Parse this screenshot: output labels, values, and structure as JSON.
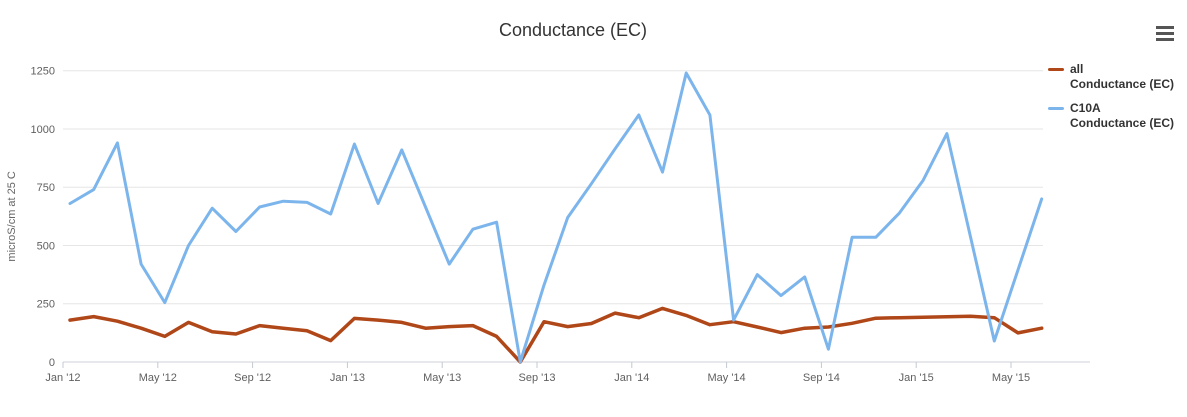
{
  "title": {
    "text": "Conductance (EC)"
  },
  "menu": {
    "icon": "hamburger-context-menu"
  },
  "legend": {
    "position": "right",
    "items": [
      {
        "title": "all",
        "subtitle": "Conductance (EC)"
      },
      {
        "title": "C10A",
        "subtitle": "Conductance (EC)"
      }
    ]
  },
  "chart_data": {
    "type": "line",
    "title": "Conductance (EC)",
    "xlabel": "",
    "ylabel": "microS/cm at 25 C",
    "ylim": [
      0,
      1250
    ],
    "yticks": [
      0,
      250,
      500,
      750,
      1000,
      1250
    ],
    "grid": true,
    "legend_position": "right",
    "categories": [
      "Jan '12",
      "Feb '12",
      "Mar '12",
      "Apr '12",
      "May '12",
      "Jun '12",
      "Jul '12",
      "Aug '12",
      "Sep '12",
      "Oct '12",
      "Nov '12",
      "Dec '12",
      "Jan '13",
      "Feb '13",
      "Mar '13",
      "Apr '13",
      "May '13",
      "Jun '13",
      "Jul '13",
      "Aug '13",
      "Sep '13",
      "Oct '13",
      "Nov '13",
      "Dec '13",
      "Jan '14",
      "Feb '14",
      "Mar '14",
      "Apr '14",
      "May '14",
      "Jun '14",
      "Jul '14",
      "Aug '14",
      "Sep '14",
      "Oct '14",
      "Nov '14",
      "Dec '14",
      "Jan '15",
      "Feb '15",
      "Mar '15",
      "Apr '15",
      "May '15",
      "Jun '15"
    ],
    "xtick_indices": [
      0,
      4,
      8,
      12,
      16,
      20,
      24,
      28,
      32,
      36,
      40
    ],
    "xticklabels": [
      "Jan '12",
      "May '12",
      "Sep '12",
      "Jan '13",
      "May '13",
      "Sep '13",
      "Jan '14",
      "May '14",
      "Sep '14",
      "Jan '15",
      "May '15"
    ],
    "series": [
      {
        "name": "all",
        "measure": "Conductance (EC)",
        "color": "#b04718",
        "line_width": 3.5,
        "values": [
          180,
          195,
          175,
          145,
          110,
          170,
          130,
          120,
          156,
          145,
          134,
          92,
          187,
          180,
          170,
          145,
          152,
          156,
          110,
          0,
          173,
          152,
          165,
          210,
          190,
          230,
          200,
          160,
          173,
          150,
          126,
          145,
          150,
          166,
          188,
          190,
          192,
          194,
          196,
          190,
          125,
          145
        ]
      },
      {
        "name": "C10A",
        "measure": "Conductance (EC)",
        "color": "#7cb5ec",
        "line_width": 3,
        "values": [
          680,
          740,
          940,
          420,
          255,
          500,
          660,
          560,
          665,
          690,
          685,
          635,
          935,
          680,
          910,
          665,
          420,
          570,
          600,
          0,
          330,
          620,
          765,
          915,
          1060,
          815,
          1240,
          1060,
          180,
          375,
          285,
          365,
          55,
          535,
          535,
          640,
          780,
          980,
          535,
          90,
          395,
          700
        ]
      }
    ]
  }
}
